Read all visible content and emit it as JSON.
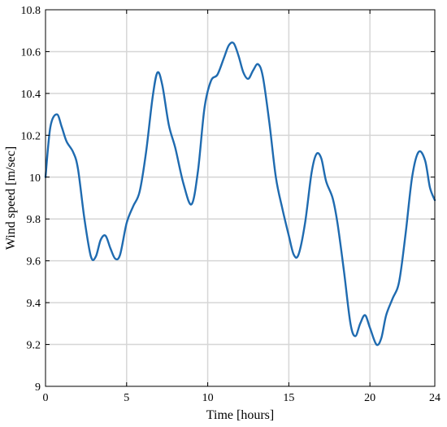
{
  "chart_data": {
    "type": "line",
    "title": "",
    "xlabel": "Time [hours]",
    "ylabel": "Wind speed [m/sec]",
    "xlim": [
      0,
      24
    ],
    "ylim": [
      9,
      10.8
    ],
    "xticks": [
      0,
      5,
      10,
      15,
      20,
      24
    ],
    "yticks": [
      9,
      9.2,
      9.4,
      9.6,
      9.8,
      10,
      10.2,
      10.4,
      10.6,
      10.8
    ],
    "xtick_labels": [
      "0",
      "5",
      "10",
      "15",
      "20",
      "24"
    ],
    "ytick_labels": [
      "9",
      "9.2",
      "9.4",
      "9.6",
      "9.8",
      "10",
      "10.2",
      "10.4",
      "10.6",
      "10.8"
    ],
    "grid": true,
    "line_color": "#1f6bb0",
    "grid_color": "#d6d6d6",
    "series": [
      {
        "x": [
          0,
          0.3,
          0.7,
          1.0,
          1.3,
          1.7,
          2.0,
          2.4,
          2.8,
          3.1,
          3.4,
          3.7,
          4.0,
          4.3,
          4.6,
          5.0,
          5.4,
          5.8,
          6.2,
          6.6,
          6.9,
          7.2,
          7.6,
          8.0,
          8.5,
          9.0,
          9.4,
          9.8,
          10.2,
          10.6,
          11.0,
          11.3,
          11.6,
          11.9,
          12.2,
          12.5,
          12.8,
          13.1,
          13.4,
          13.8,
          14.2,
          14.6,
          15.0,
          15.3,
          15.6,
          16.0,
          16.4,
          16.7,
          17.0,
          17.3,
          17.7,
          18.0,
          18.4,
          18.8,
          19.1,
          19.4,
          19.7,
          20.0,
          20.4,
          20.7,
          21.0,
          21.4,
          21.8,
          22.2,
          22.6,
          23.0,
          23.4,
          23.7,
          24.0
        ],
        "y": [
          10.0,
          10.24,
          10.3,
          10.24,
          10.17,
          10.12,
          10.04,
          9.8,
          9.62,
          9.62,
          9.7,
          9.72,
          9.66,
          9.61,
          9.63,
          9.78,
          9.86,
          9.93,
          10.12,
          10.38,
          10.5,
          10.44,
          10.25,
          10.14,
          9.97,
          9.87,
          10.03,
          10.33,
          10.46,
          10.49,
          10.57,
          10.63,
          10.64,
          10.58,
          10.5,
          10.47,
          10.51,
          10.54,
          10.48,
          10.26,
          10.0,
          9.85,
          9.72,
          9.63,
          9.63,
          9.78,
          10.02,
          10.11,
          10.09,
          9.98,
          9.9,
          9.78,
          9.55,
          9.3,
          9.24,
          9.3,
          9.34,
          9.28,
          9.2,
          9.23,
          9.34,
          9.42,
          9.5,
          9.73,
          10.0,
          10.12,
          10.08,
          9.95,
          9.89
        ]
      }
    ]
  }
}
